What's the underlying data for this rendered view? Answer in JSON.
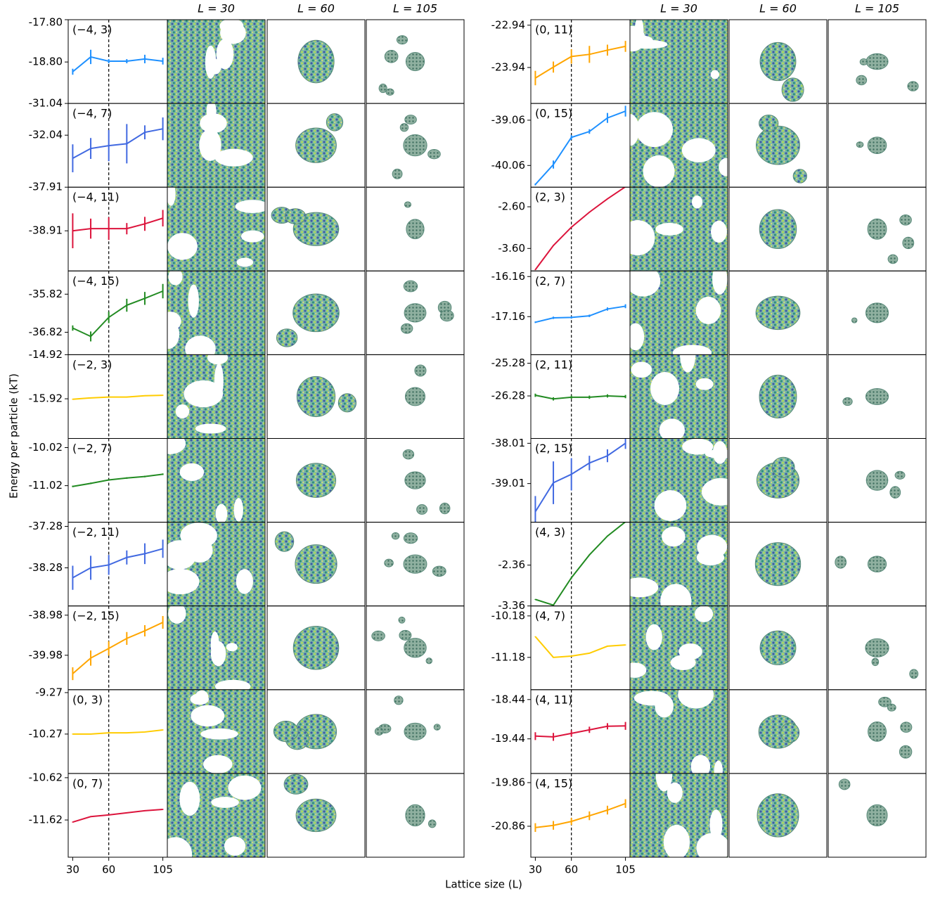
{
  "figure": {
    "column_headers": [
      "L = 30",
      "L = 60",
      "L = 105"
    ],
    "ylabel": "Energy per particle (kT)",
    "xlabel": "Lattice size (L)"
  },
  "chart_data": [
    {
      "type": "line",
      "title": "(−4, 3)",
      "color": "#1e90ff",
      "x": [
        30,
        45,
        60,
        75,
        90,
        105
      ],
      "values": [
        -19.03,
        -18.68,
        -18.78,
        -18.78,
        -18.73,
        -18.78
      ],
      "errors": [
        0.07,
        0.17,
        0.05,
        0.05,
        0.1,
        0.08
      ],
      "xlim": [
        26.25,
        108.75
      ],
      "ylim": [
        -19.78,
        -17.8
      ],
      "yticks": [
        {
          "value": -17.8,
          "label": "-17.80"
        },
        {
          "value": -18.8,
          "label": "-18.80"
        }
      ],
      "vline": 60
    },
    {
      "type": "line",
      "title": "(−4, 7)",
      "color": "#4169e1",
      "x": [
        30,
        45,
        60,
        75,
        90,
        105
      ],
      "values": [
        -32.77,
        -32.46,
        -32.37,
        -32.31,
        -31.95,
        -31.84
      ],
      "errors": [
        0.44,
        0.33,
        0.49,
        0.62,
        0.22,
        0.36
      ],
      "xlim": [
        26.25,
        108.75
      ],
      "ylim": [
        -33.68,
        -31.04
      ],
      "yticks": [
        -31.04,
        -32.04
      ],
      "vline": 60
    },
    {
      "type": "line",
      "title": "(−4, 11)",
      "color": "#dc143c",
      "x": [
        30,
        45,
        60,
        75,
        90,
        105
      ],
      "values": [
        -38.91,
        -38.86,
        -38.86,
        -38.86,
        -38.75,
        -38.62
      ],
      "errors": [
        0.4,
        0.23,
        0.26,
        0.13,
        0.16,
        0.19
      ],
      "xlim": [
        26.25,
        108.75
      ],
      "ylim": [
        -39.83,
        -37.91
      ],
      "yticks": [
        -37.91,
        -38.91
      ],
      "vline": 60
    },
    {
      "type": "line",
      "title": "(−4, 15)",
      "color": "#228b22",
      "x": [
        30,
        45,
        60,
        75,
        90,
        105
      ],
      "values": [
        -36.71,
        -36.93,
        -36.43,
        -36.11,
        -35.93,
        -35.74
      ],
      "errors": [
        0.07,
        0.13,
        0.15,
        0.17,
        0.17,
        0.19
      ],
      "xlim": [
        26.25,
        108.75
      ],
      "ylim": [
        -37.41,
        -35.21
      ],
      "yticks": [
        -35.82,
        -36.82
      ],
      "vline": 60
    },
    {
      "type": "line",
      "title": "(−2, 3)",
      "color": "#ffcc00",
      "x": [
        30,
        45,
        60,
        75,
        90,
        105
      ],
      "values": [
        -15.93,
        -15.9,
        -15.88,
        -15.88,
        -15.85,
        -15.84
      ],
      "errors": [
        0.01,
        0.01,
        0.01,
        0.01,
        0.01,
        0.01
      ],
      "xlim": [
        26.25,
        108.75
      ],
      "ylim": [
        -16.82,
        -14.92
      ],
      "yticks": [
        -14.92,
        -15.92
      ],
      "vline": 60
    },
    {
      "type": "line",
      "title": "(−2, 7)",
      "color": "#228b22",
      "x": [
        30,
        45,
        60,
        75,
        90,
        105
      ],
      "values": [
        -11.04,
        -10.96,
        -10.87,
        -10.82,
        -10.78,
        -10.72
      ],
      "errors": [
        0.02,
        0.02,
        0.02,
        0.02,
        0.02,
        0.02
      ],
      "xlim": [
        26.25,
        108.75
      ],
      "ylim": [
        -11.98,
        -9.78
      ],
      "yticks": [
        -10.02,
        -11.02
      ],
      "vline": 60
    },
    {
      "type": "line",
      "title": "(−2, 11)",
      "color": "#4169e1",
      "x": [
        30,
        45,
        60,
        75,
        90,
        105
      ],
      "values": [
        -38.52,
        -38.28,
        -38.21,
        -38.03,
        -37.94,
        -37.82
      ],
      "errors": [
        0.29,
        0.29,
        0.24,
        0.17,
        0.25,
        0.22
      ],
      "xlim": [
        26.25,
        108.75
      ],
      "ylim": [
        -39.2,
        -37.18
      ],
      "yticks": [
        -37.28,
        -38.28
      ],
      "vline": 60
    },
    {
      "type": "line",
      "title": "(−2, 15)",
      "color": "#ffa500",
      "x": [
        30,
        45,
        60,
        75,
        90,
        105
      ],
      "values": [
        -40.44,
        -40.05,
        -39.81,
        -39.56,
        -39.37,
        -39.16
      ],
      "errors": [
        0.16,
        0.19,
        0.18,
        0.16,
        0.14,
        0.16
      ],
      "xlim": [
        26.25,
        108.75
      ],
      "ylim": [
        -40.84,
        -38.75
      ],
      "yticks": [
        -38.98,
        -39.98
      ],
      "vline": 60
    },
    {
      "type": "line",
      "title": "(0, 3)",
      "color": "#ffcc00",
      "x": [
        30,
        45,
        60,
        75,
        90,
        105
      ],
      "values": [
        -10.27,
        -10.27,
        -10.24,
        -10.24,
        -10.22,
        -10.17
      ],
      "errors": [
        0.01,
        0.01,
        0.01,
        0.01,
        0.01,
        0.01
      ],
      "xlim": [
        26.25,
        108.75
      ],
      "ylim": [
        -11.22,
        -9.2
      ],
      "yticks": [
        -9.27,
        -10.27
      ],
      "vline": 60
    },
    {
      "type": "line",
      "title": "(0, 7)",
      "color": "#dc143c",
      "x": [
        30,
        45,
        60,
        75,
        90,
        105
      ],
      "values": [
        -11.67,
        -11.54,
        -11.5,
        -11.45,
        -11.4,
        -11.37
      ],
      "errors": [
        0.01,
        0.01,
        0.01,
        0.01,
        0.01,
        0.01
      ],
      "xlim": [
        26.25,
        108.75
      ],
      "ylim": [
        -12.5,
        -10.52
      ],
      "yticks": [
        -10.62,
        -11.62
      ],
      "xticks": [
        30,
        60,
        105
      ],
      "vline": 60
    },
    {
      "type": "line",
      "title": "(0, 11)",
      "color": "#ffa500",
      "x": [
        30,
        45,
        60,
        75,
        90,
        105
      ],
      "values": [
        -24.19,
        -23.93,
        -23.68,
        -23.63,
        -23.53,
        -23.44
      ],
      "errors": [
        0.17,
        0.13,
        0.17,
        0.2,
        0.13,
        0.13
      ],
      "xlim": [
        26.25,
        108.75
      ],
      "ylim": [
        -24.79,
        -22.81
      ],
      "yticks": [
        -22.94,
        -23.94
      ],
      "vline": 60
    },
    {
      "type": "line",
      "title": "(0, 15)",
      "color": "#1e90ff",
      "x": [
        30,
        45,
        60,
        75,
        90,
        105
      ],
      "values": [
        -40.48,
        -40.04,
        -39.44,
        -39.31,
        -39.01,
        -38.86
      ],
      "errors": [
        0.02,
        0.09,
        0.05,
        0.05,
        0.11,
        0.12
      ],
      "xlim": [
        26.25,
        108.75
      ],
      "ylim": [
        -40.54,
        -38.69
      ],
      "yticks": [
        -39.06,
        -40.06
      ],
      "vline": 60
    },
    {
      "type": "line",
      "title": "(2, 3)",
      "color": "#dc143c",
      "x": [
        30,
        45,
        60,
        75,
        90,
        105
      ],
      "values": [
        -4.11,
        -3.53,
        -3.09,
        -2.73,
        -2.41,
        -2.12
      ],
      "errors": [
        0.01,
        0.01,
        0.01,
        0.01,
        0.01,
        0.01
      ],
      "xlim": [
        26.25,
        108.75
      ],
      "ylim": [
        -4.14,
        -2.13
      ],
      "yticks": [
        {
          "value": -2.6,
          "label": "-2.60"
        },
        {
          "value": -3.6,
          "label": "-3.60"
        }
      ],
      "vline": 60
    },
    {
      "type": "line",
      "title": "(2, 7)",
      "color": "#1e90ff",
      "x": [
        30,
        45,
        60,
        75,
        90,
        105
      ],
      "values": [
        -17.3,
        -17.19,
        -17.18,
        -17.14,
        -16.97,
        -16.9
      ],
      "errors": [
        0.02,
        0.03,
        0.03,
        0.03,
        0.04,
        0.05
      ],
      "xlim": [
        26.25,
        108.75
      ],
      "ylim": [
        -18.11,
        -16.02
      ],
      "yticks": [
        -16.16,
        -17.16
      ],
      "vline": 60
    },
    {
      "type": "line",
      "title": "(2, 11)",
      "color": "#228b22",
      "x": [
        30,
        45,
        60,
        75,
        90,
        105
      ],
      "values": [
        -26.26,
        -26.37,
        -26.32,
        -26.32,
        -26.28,
        -26.3
      ],
      "errors": [
        0.05,
        0.05,
        0.05,
        0.05,
        0.05,
        0.05
      ],
      "xlim": [
        26.25,
        108.75
      ],
      "ylim": [
        -27.58,
        -25.02
      ],
      "yticks": [
        -25.28,
        -26.28
      ],
      "vline": 60
    },
    {
      "type": "line",
      "title": "(2, 15)",
      "color": "#4169e1",
      "x": [
        30,
        45,
        60,
        75,
        90,
        105
      ],
      "values": [
        -39.71,
        -38.99,
        -38.78,
        -38.5,
        -38.32,
        -38.01
      ],
      "errors": [
        0.39,
        0.53,
        0.4,
        0.18,
        0.16,
        0.14
      ],
      "xlim": [
        26.25,
        108.75
      ],
      "ylim": [
        -39.97,
        -37.89
      ],
      "yticks": [
        -38.01,
        -39.01
      ],
      "vline": 60
    },
    {
      "type": "line",
      "title": "(4, 3)",
      "color": "#228b22",
      "x": [
        30,
        45,
        60,
        75,
        90,
        105
      ],
      "values": [
        -3.2,
        -3.34,
        -2.67,
        -2.11,
        -1.65,
        -1.3
      ],
      "errors": [
        0.01,
        0.01,
        0.01,
        0.01,
        0.01,
        0.01
      ],
      "xlim": [
        26.25,
        108.75
      ],
      "ylim": [
        -3.36,
        -1.31
      ],
      "yticks": [
        -2.36,
        -3.36
      ],
      "vline": 60
    },
    {
      "type": "line",
      "title": "(4, 7)",
      "color": "#ffcc00",
      "x": [
        30,
        45,
        60,
        75,
        90,
        105
      ],
      "values": [
        -10.68,
        -11.18,
        -11.15,
        -11.08,
        -10.91,
        -10.88
      ],
      "errors": [
        0.01,
        0.01,
        0.01,
        0.01,
        0.01,
        0.01
      ],
      "xlim": [
        26.25,
        108.75
      ],
      "ylim": [
        -11.96,
        -9.94
      ],
      "yticks": [
        -10.18,
        -11.18
      ],
      "vline": 60
    },
    {
      "type": "line",
      "title": "(4, 11)",
      "color": "#dc143c",
      "x": [
        30,
        45,
        60,
        75,
        90,
        105
      ],
      "values": [
        -19.37,
        -19.39,
        -19.3,
        -19.21,
        -19.12,
        -19.11
      ],
      "errors": [
        0.1,
        0.1,
        0.08,
        0.08,
        0.08,
        0.1
      ],
      "xlim": [
        26.25,
        108.75
      ],
      "ylim": [
        -20.32,
        -18.19
      ],
      "yticks": [
        -18.44,
        -19.44
      ],
      "vline": 60
    },
    {
      "type": "line",
      "title": "(4, 15)",
      "color": "#ffa500",
      "x": [
        30,
        45,
        60,
        75,
        90,
        105
      ],
      "values": [
        -20.89,
        -20.84,
        -20.75,
        -20.62,
        -20.49,
        -20.34
      ],
      "errors": [
        0.1,
        0.1,
        0.08,
        0.1,
        0.1,
        0.1
      ],
      "xlim": [
        26.25,
        108.75
      ],
      "ylim": [
        -21.57,
        -19.65
      ],
      "yticks": [
        -19.86,
        -20.86
      ],
      "xticks": [
        30,
        60,
        105
      ],
      "vline": 60
    }
  ]
}
